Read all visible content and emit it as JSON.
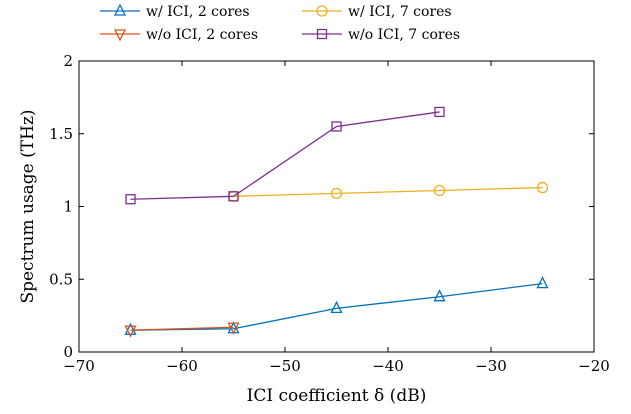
{
  "chart_data": {
    "type": "line",
    "xlabel": "ICI coefficient δ (dB)",
    "ylabel": "Spectrum usage (THz)",
    "xlim": [
      -70,
      -20
    ],
    "ylim": [
      0,
      2
    ],
    "xticks": [
      -70,
      -60,
      -50,
      -40,
      -30,
      -20
    ],
    "xtick_labels": [
      "−70",
      "−60",
      "−50",
      "−40",
      "−30",
      "−20"
    ],
    "yticks": [
      0,
      0.5,
      1,
      1.5,
      2
    ],
    "ytick_labels": [
      "0",
      "0.5",
      "1",
      "1.5",
      "2"
    ],
    "grid": false,
    "legend_position": "top, outside plot, 2 columns",
    "series": [
      {
        "name": "w/ ICI, 2 cores",
        "color": "#0072BD",
        "marker": "triangle-up",
        "x": [
          -65,
          -55,
          -45,
          -35,
          -25
        ],
        "y": [
          0.15,
          0.16,
          0.3,
          0.38,
          0.47
        ]
      },
      {
        "name": "w/ ICI, 7 cores",
        "color": "#EDB120",
        "marker": "circle",
        "x": [
          -55,
          -45,
          -35,
          -25
        ],
        "y": [
          1.07,
          1.09,
          1.11,
          1.13
        ]
      },
      {
        "name": "w/o ICI, 2 cores",
        "color": "#D95319",
        "marker": "triangle-down",
        "x": [
          -65,
          -55
        ],
        "y": [
          0.15,
          0.17
        ]
      },
      {
        "name": "w/o ICI, 7 cores",
        "color": "#7E2F8E",
        "marker": "square",
        "x": [
          -65,
          -55,
          -45,
          -35
        ],
        "y": [
          1.05,
          1.07,
          1.55,
          1.65
        ]
      }
    ]
  }
}
